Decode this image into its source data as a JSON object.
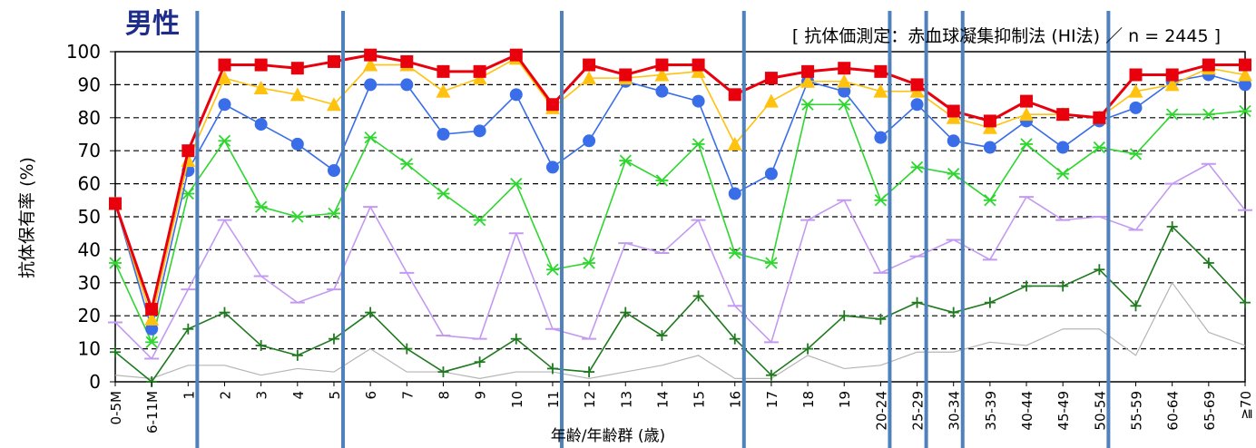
{
  "chart_data": {
    "type": "line",
    "title": "男性",
    "subtitle": "[ 抗体価測定：赤血球凝集抑制法 (HI法) ／ n = 2445 ]",
    "xlabel": "年齢/年齢群 (歳)",
    "ylabel": "抗体保有率 (%)",
    "ylim": [
      0,
      100
    ],
    "yticks": [
      0,
      10,
      20,
      30,
      40,
      50,
      60,
      70,
      80,
      90,
      100
    ],
    "grid": true,
    "categories": [
      "0-5M",
      "6-11M",
      "1",
      "2",
      "3",
      "4",
      "5",
      "6",
      "7",
      "8",
      "9",
      "10",
      "11",
      "12",
      "13",
      "14",
      "15",
      "16",
      "17",
      "18",
      "19",
      "20-24",
      "25-29",
      "30-34",
      "35-39",
      "40-44",
      "45-49",
      "50-54",
      "55-59",
      "60-64",
      "65-69",
      "≧70"
    ],
    "series": [
      {
        "color": "#e8000d",
        "marker": "square",
        "values": [
          54,
          22,
          70,
          96,
          96,
          95,
          97,
          99,
          97,
          94,
          94,
          99,
          84,
          96,
          93,
          96,
          96,
          87,
          92,
          94,
          95,
          94,
          90,
          82,
          79,
          85,
          81,
          80,
          93,
          93,
          96,
          96
        ]
      },
      {
        "color": "#ffc20e",
        "marker": "triangle",
        "values": [
          54,
          19,
          67,
          92,
          89,
          87,
          84,
          96,
          96,
          88,
          92,
          98,
          83,
          92,
          92,
          93,
          94,
          72,
          85,
          91,
          91,
          88,
          88,
          80,
          77,
          81,
          81,
          80,
          88,
          90,
          95,
          93
        ]
      },
      {
        "color": "#3a6ee8",
        "marker": "circle",
        "values": [
          54,
          16,
          64,
          84,
          78,
          72,
          64,
          90,
          90,
          75,
          76,
          87,
          65,
          73,
          91,
          88,
          85,
          57,
          63,
          91,
          88,
          74,
          84,
          73,
          71,
          79,
          71,
          79,
          83,
          91,
          93,
          90
        ]
      },
      {
        "color": "#2fd62f",
        "marker": "x",
        "values": [
          36,
          12,
          57,
          73,
          53,
          50,
          51,
          74,
          66,
          57,
          49,
          60,
          34,
          36,
          67,
          61,
          72,
          39,
          36,
          84,
          84,
          55,
          65,
          63,
          55,
          72,
          63,
          71,
          69,
          81,
          81,
          82
        ]
      },
      {
        "color": "#c49af0",
        "marker": "dash",
        "values": [
          18,
          7,
          28,
          49,
          32,
          24,
          28,
          53,
          33,
          14,
          13,
          45,
          16,
          13,
          42,
          39,
          49,
          23,
          12,
          49,
          55,
          33,
          38,
          43,
          37,
          56,
          49,
          50,
          46,
          60,
          66,
          52
        ]
      },
      {
        "color": "#1f7a1f",
        "marker": "plus",
        "values": [
          9,
          0,
          16,
          21,
          11,
          8,
          13,
          21,
          10,
          3,
          6,
          13,
          4,
          3,
          21,
          14,
          26,
          13,
          2,
          10,
          20,
          19,
          24,
          21,
          24,
          29,
          29,
          34,
          23,
          47,
          36,
          24
        ]
      },
      {
        "color": "#b5b5b5",
        "marker": "none",
        "values": [
          2,
          1,
          5,
          5,
          2,
          4,
          3,
          10,
          3,
          3,
          1,
          3,
          3,
          1,
          3,
          5,
          8,
          1,
          1,
          8,
          4,
          5,
          9,
          9,
          12,
          11,
          16,
          16,
          8,
          30,
          15,
          11
        ]
      }
    ],
    "vertical_separators_after": [
      "1",
      "5",
      "11",
      "16",
      "20-24",
      "25-29",
      "30-34",
      "50-54"
    ],
    "separator_color": "#4f81bd"
  }
}
